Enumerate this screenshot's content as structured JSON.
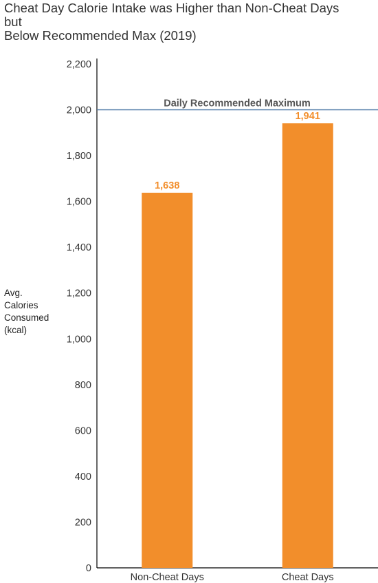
{
  "chart_data": {
    "type": "bar",
    "title_lines": [
      "Cheat Day Calorie Intake was Higher than Non-Cheat Days",
      "but",
      "Below Recommended Max (2019)"
    ],
    "ylabel_lines": [
      "Avg.",
      "Calories",
      "Consumed",
      "(kcal)"
    ],
    "categories": [
      "Non-Cheat Days",
      "Cheat Days"
    ],
    "values": [
      1638,
      1941
    ],
    "value_labels": [
      "1,638",
      "1,941"
    ],
    "ylim": [
      0,
      2200
    ],
    "yticks": [
      0,
      200,
      400,
      600,
      800,
      1000,
      1200,
      1400,
      1600,
      1800,
      2000,
      2200
    ],
    "ytick_labels": [
      "0",
      "200",
      "400",
      "600",
      "800",
      "1,000",
      "1,200",
      "1,400",
      "1,600",
      "1,800",
      "2,000",
      "2,200"
    ],
    "reference_line": {
      "value": 2000,
      "label": "Daily Recommended Maximum"
    },
    "grid": false,
    "colors": {
      "bar": "#F28E2B",
      "reference_line": "#4E79A7",
      "value_label": "#F28E2B",
      "reference_label": "#555555"
    }
  }
}
